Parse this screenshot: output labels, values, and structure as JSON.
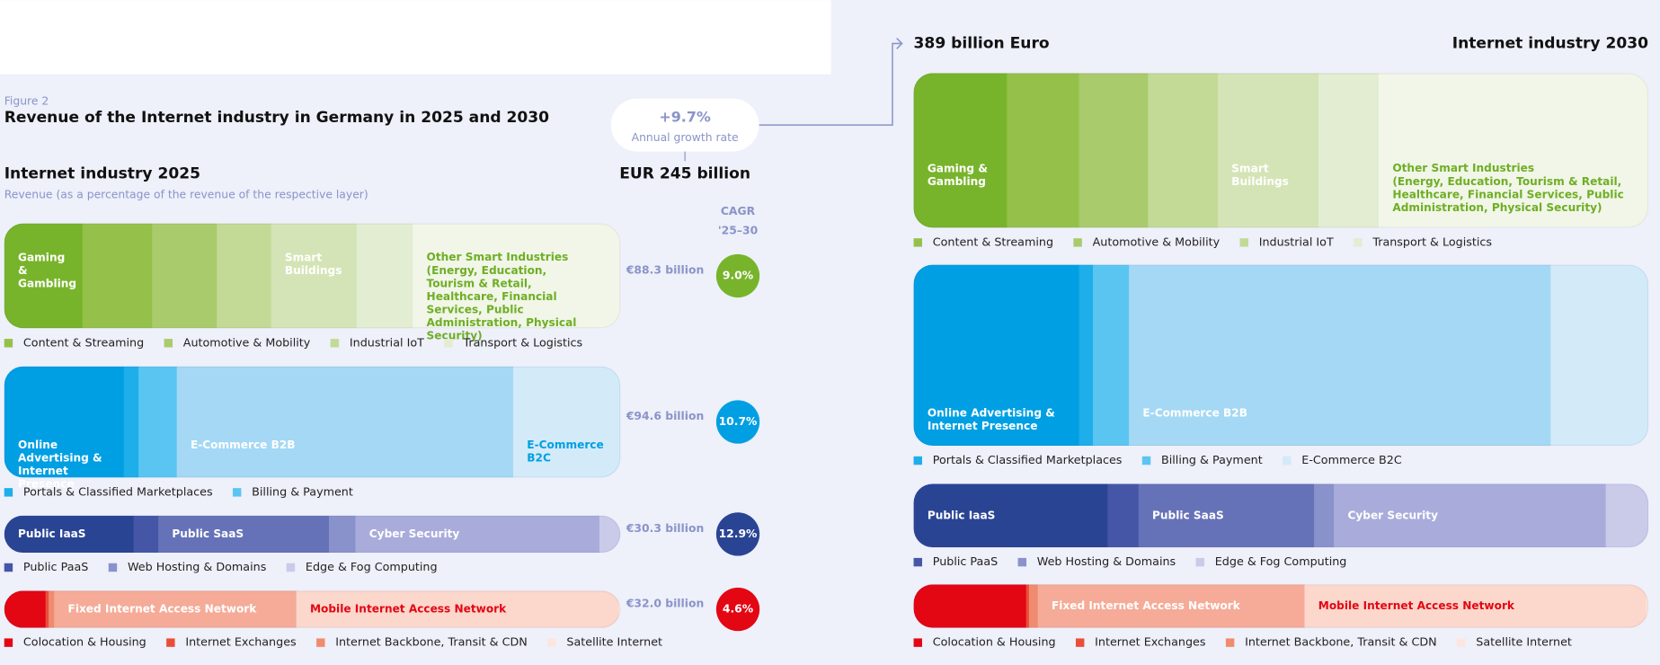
{
  "figure_label": "Figure 2",
  "title": "Revenue of the Internet industry in Germany in 2025 and 2030",
  "growth": {
    "value": "+9.7%",
    "label": "Annual growth rate"
  },
  "cagr_header": [
    "CAGR",
    "'25–30"
  ],
  "y2025": {
    "heading": "Internet industry 2025",
    "subtitle": "Revenue (as a percentage of the revenue of the respective layer)",
    "total": "EUR 245 billion",
    "layers": [
      {
        "revenue": "€88.3 billion",
        "cagr": "9.0%",
        "color": "#78b42b",
        "label_position": "top",
        "segments": [
          {
            "name": "Gaming & Gambling",
            "share": 12.7,
            "color": "#78b42b",
            "label": "inside",
            "label_color": "#ffffff"
          },
          {
            "name": "Content & Streaming",
            "share": 11.3,
            "color": "#95c14a",
            "label": "legend"
          },
          {
            "name": "Automotive & Mobility",
            "share": 10.5,
            "color": "#a9cb6c",
            "label": "legend"
          },
          {
            "name": "Industrial IoT",
            "share": 8.8,
            "color": "#c2da96",
            "label": "legend"
          },
          {
            "name": "Smart Buildings",
            "share": 13.9,
            "color": "#d5e4b6",
            "label": "inside",
            "label_color": "#ffffff"
          },
          {
            "name": "Transport & Logistics",
            "share": 9.1,
            "color": "#e2edd2",
            "label": "legend"
          },
          {
            "name": "Other Smart Industries",
            "note": "(Energy, Education, Tourism & Retail, Healthcare, Financial Services, Public Administration, Physical Security)",
            "share": 33.7,
            "color": "#f1f6e8",
            "label": "inside",
            "label_color": "#6fae25"
          }
        ]
      },
      {
        "revenue": "€94.6 billion",
        "cagr": "10.7%",
        "color": "#009fe3",
        "label_position": "bottom",
        "segments": [
          {
            "name": "Online Advertising & Internet Presence",
            "share": 19.4,
            "color": "#009fe3",
            "label": "inside",
            "label_color": "#ffffff"
          },
          {
            "name": "Portals & Classified Marketplaces",
            "share": 2.4,
            "color": "#1eaee9",
            "label": "legend"
          },
          {
            "name": "Billing & Payment",
            "share": 6.2,
            "color": "#5bc5f2",
            "label": "legend"
          },
          {
            "name": "E-Commerce B2B",
            "share": 54.6,
            "color": "#a4d8f5",
            "label": "inside",
            "label_color": "#ffffff"
          },
          {
            "name": "E-Commerce B2C",
            "share": 17.4,
            "color": "#d3eaf9",
            "label": "inside",
            "label_color": "#009fe3"
          }
        ]
      },
      {
        "revenue": "€30.3 billion",
        "cagr": "12.9%",
        "color": "#2a4494",
        "label_position": "middle",
        "segments": [
          {
            "name": "Public IaaS",
            "share": 21.0,
            "color": "#2a4494",
            "label": "inside",
            "label_color": "#ffffff"
          },
          {
            "name": "Public PaaS",
            "share": 4.0,
            "color": "#4656a6",
            "label": "legend"
          },
          {
            "name": "Public SaaS",
            "share": 27.7,
            "color": "#6672b8",
            "label": "inside",
            "label_color": "#ffffff"
          },
          {
            "name": "Web Hosting & Domains",
            "share": 4.3,
            "color": "#8a92cc",
            "label": "legend"
          },
          {
            "name": "Cyber Security",
            "share": 39.6,
            "color": "#a9acdb",
            "label": "inside",
            "label_color": "#ffffff"
          },
          {
            "name": "Edge & Fog Computing",
            "share": 3.4,
            "color": "#c9cbe9",
            "label": "legend"
          }
        ]
      },
      {
        "revenue": "€32.0 billion",
        "cagr": "4.6%",
        "color": "#e30613",
        "label_position": "middle",
        "segments": [
          {
            "name": "Colocation & Housing",
            "share": 6.7,
            "color": "#e30613",
            "label": "legend"
          },
          {
            "name": "Internet Exchanges",
            "share": 0.5,
            "color": "#e94e3b",
            "label": "legend"
          },
          {
            "name": "Internet Backbone, Transit & CDN",
            "share": 0.9,
            "color": "#f08b6f",
            "label": "legend"
          },
          {
            "name": "Fixed Internet Access Network",
            "share": 39.3,
            "color": "#f5ab97",
            "label": "inside",
            "label_color": "#ffffff"
          },
          {
            "name": "Mobile Internet Access Network",
            "share": 52.3,
            "color": "#fbd7cc",
            "label": "inside",
            "label_color": "#e30613"
          },
          {
            "name": "Satellite Internet",
            "share": 0.3,
            "color": "#fde6df",
            "label": "legend"
          }
        ]
      }
    ]
  },
  "y2030": {
    "heading": "Internet industry 2030",
    "total": "389 billion Euro",
    "layers": [
      {
        "label_position": "lower",
        "segments": [
          {
            "name": "Gaming & Gambling",
            "share": 12.7,
            "color": "#78b42b",
            "label": "inside",
            "label_color": "#ffffff"
          },
          {
            "name": "Content & Streaming",
            "share": 9.8,
            "color": "#95c14a",
            "label": "legend"
          },
          {
            "name": "Automotive & Mobility",
            "share": 9.4,
            "color": "#a9cb6c",
            "label": "legend"
          },
          {
            "name": "Industrial IoT",
            "share": 9.5,
            "color": "#c2da96",
            "label": "legend"
          },
          {
            "name": "Smart Buildings",
            "share": 13.7,
            "color": "#d5e4b6",
            "label": "inside",
            "label_color": "#ffffff"
          },
          {
            "name": "Transport & Logistics",
            "share": 8.2,
            "color": "#e2edd2",
            "label": "legend"
          },
          {
            "name": "Other Smart Industries",
            "note": "(Energy, Education, Tourism & Retail, Healthcare, Financial Services, Public Administration, Physical Security)",
            "share": 36.7,
            "color": "#f1f6e8",
            "label": "inside",
            "label_color": "#6fae25"
          }
        ]
      },
      {
        "label_position": "bottom",
        "segments": [
          {
            "name": "Online Advertising & Internet Presence",
            "share": 22.5,
            "color": "#009fe3",
            "label": "inside",
            "label_color": "#ffffff"
          },
          {
            "name": "Portals & Classified Marketplaces",
            "share": 1.9,
            "color": "#1eaee9",
            "label": "legend"
          },
          {
            "name": "Billing & Payment",
            "share": 4.9,
            "color": "#5bc5f2",
            "label": "legend"
          },
          {
            "name": "E-Commerce B2B",
            "share": 57.4,
            "color": "#a4d8f5",
            "label": "inside",
            "label_color": "#ffffff"
          },
          {
            "name": "E-Commerce B2C",
            "share": 13.3,
            "color": "#d3eaf9",
            "label": "legend"
          }
        ]
      },
      {
        "label_position": "middle",
        "segments": [
          {
            "name": "Public IaaS",
            "share": 26.4,
            "color": "#2a4494",
            "label": "inside",
            "label_color": "#ffffff"
          },
          {
            "name": "Public PaaS",
            "share": 4.2,
            "color": "#4656a6",
            "label": "legend"
          },
          {
            "name": "Public SaaS",
            "share": 23.9,
            "color": "#6672b8",
            "label": "inside",
            "label_color": "#ffffff"
          },
          {
            "name": "Web Hosting & Domains",
            "share": 2.7,
            "color": "#8a92cc",
            "label": "legend"
          },
          {
            "name": "Cyber Security",
            "share": 37.0,
            "color": "#a9acdb",
            "label": "inside",
            "label_color": "#ffffff"
          },
          {
            "name": "Edge & Fog Computing",
            "share": 5.8,
            "color": "#c9cbe9",
            "label": "legend"
          }
        ]
      },
      {
        "label_position": "middle",
        "segments": [
          {
            "name": "Colocation & Housing",
            "share": 15.3,
            "color": "#e30613",
            "label": "legend"
          },
          {
            "name": "Internet Exchanges",
            "share": 0.4,
            "color": "#e94e3b",
            "label": "legend"
          },
          {
            "name": "Internet Backbone, Transit & CDN",
            "share": 1.2,
            "color": "#f08b6f",
            "label": "legend"
          },
          {
            "name": "Fixed Internet Access Network",
            "share": 36.3,
            "color": "#f5ab97",
            "label": "inside",
            "label_color": "#ffffff"
          },
          {
            "name": "Mobile Internet Access Network",
            "share": 46.5,
            "color": "#fbd7cc",
            "label": "inside",
            "label_color": "#e30613"
          },
          {
            "name": "Satellite Internet",
            "share": 0.3,
            "color": "#fde6df",
            "label": "legend"
          }
        ]
      }
    ]
  }
}
